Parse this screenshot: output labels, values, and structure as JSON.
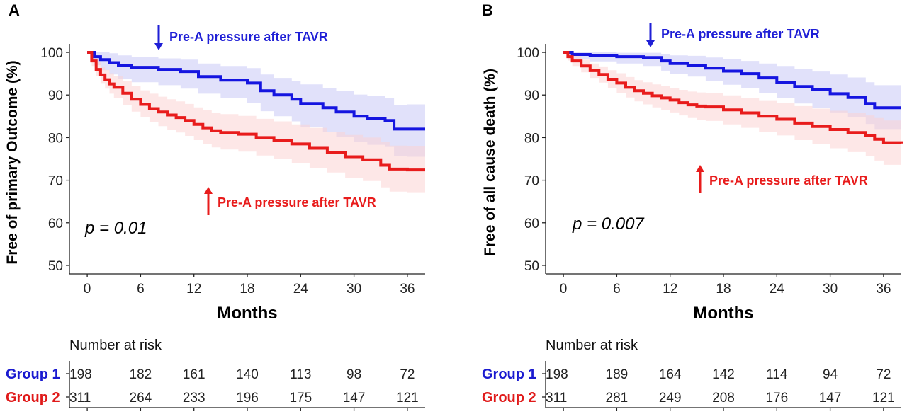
{
  "chart_data": [
    {
      "type": "line",
      "panel": "A",
      "title": "",
      "xlabel": "Months",
      "ylabel": "Free of primary Outcome (%)",
      "xlim": [
        -2,
        38
      ],
      "ylim": [
        48,
        102
      ],
      "xticks": [
        0,
        6,
        12,
        18,
        24,
        30,
        36
      ],
      "yticks": [
        50,
        60,
        70,
        80,
        90,
        100
      ],
      "grid": false,
      "legend": "none",
      "p_value": "p = 0.01",
      "annotations": [
        {
          "text": "Pre-A pressure after TAVR",
          "arrow": "down",
          "color": "#1f1fd6"
        },
        {
          "text": "Pre-A pressure after TAVR",
          "arrow": "up",
          "color": "#e81c1c"
        }
      ],
      "series": [
        {
          "color": "#1515e0",
          "band_color": "#c9c9f5",
          "x": [
            0,
            0.8,
            1.5,
            2.5,
            3.5,
            5,
            8,
            10.5,
            12.5,
            15,
            18,
            19.5,
            21,
            23,
            24,
            26.5,
            28,
            30,
            31.5,
            33.5,
            34.5,
            36,
            38
          ],
          "y": [
            100,
            99,
            98.3,
            97.6,
            97,
            96.5,
            96,
            95.5,
            94.3,
            93.5,
            92.8,
            91,
            90,
            89,
            88,
            87,
            86,
            85,
            84.5,
            84,
            82,
            82,
            82
          ],
          "lower": [
            100,
            97,
            95.8,
            94.8,
            93.8,
            93,
            92.3,
            91.5,
            90.3,
            89.3,
            88.2,
            86.2,
            85,
            83.8,
            82.5,
            81.3,
            80.2,
            79,
            78.3,
            77.8,
            75.6,
            75.5,
            75.5
          ],
          "upper": [
            100,
            100,
            100,
            99.8,
            99.3,
            98.9,
            98.6,
            98.3,
            97.4,
            96.8,
            96.3,
            94.8,
            94,
            93.2,
            92.5,
            91.7,
            90.9,
            90.1,
            89.7,
            89.3,
            87.6,
            87.8,
            88
          ]
        },
        {
          "color": "#e81c1c",
          "band_color": "#fcd3d3",
          "x": [
            0,
            0.5,
            1,
            1.5,
            2,
            2.5,
            3,
            4,
            5,
            6,
            7,
            8,
            9,
            10,
            11,
            12,
            13,
            14,
            15,
            17,
            19,
            21,
            23,
            25,
            27,
            29,
            31,
            33,
            34,
            36,
            38
          ],
          "y": [
            100,
            98,
            96,
            94.7,
            93.6,
            92.6,
            91.8,
            90.4,
            89,
            87.8,
            86.8,
            86,
            85.3,
            84.7,
            84,
            83.1,
            82.3,
            81.6,
            81.2,
            80.8,
            80,
            79.3,
            78.5,
            77.5,
            76.5,
            75.5,
            74.8,
            73.5,
            72.6,
            72.4,
            72.4
          ],
          "lower": [
            100,
            96.8,
            94.4,
            92.8,
            91.5,
            90.3,
            89.3,
            87.7,
            86.1,
            84.8,
            83.6,
            82.7,
            81.9,
            81.2,
            80.4,
            79.4,
            78.5,
            77.7,
            77.2,
            76.7,
            75.8,
            75,
            74,
            72.9,
            71.8,
            70.6,
            69.8,
            68.3,
            67.3,
            67,
            67
          ],
          "upper": [
            100,
            99.3,
            97.8,
            96.7,
            95.9,
            95.1,
            94.5,
            93.3,
            92.1,
            91.1,
            90.3,
            89.6,
            89,
            88.5,
            87.9,
            87.1,
            86.4,
            85.8,
            85.5,
            85.1,
            84.4,
            83.8,
            83.1,
            82.3,
            81.4,
            80.6,
            80,
            78.9,
            78.1,
            78,
            78
          ]
        }
      ],
      "risk_table": {
        "title": "Number at risk",
        "groups": [
          {
            "name": "Group 1",
            "color": "#1a1ad0",
            "counts": [
              198,
              182,
              161,
              140,
              113,
              98,
              72
            ]
          },
          {
            "name": "Group 2",
            "color": "#e01a1a",
            "counts": [
              311,
              264,
              233,
              196,
              175,
              147,
              121
            ]
          }
        ]
      }
    },
    {
      "type": "line",
      "panel": "B",
      "title": "",
      "xlabel": "Months",
      "ylabel": "Free of all cause death (%)",
      "xlim": [
        -2,
        38
      ],
      "ylim": [
        48,
        102
      ],
      "xticks": [
        0,
        6,
        12,
        18,
        24,
        30,
        36
      ],
      "yticks": [
        50,
        60,
        70,
        80,
        90,
        100
      ],
      "grid": false,
      "legend": "none",
      "p_value": "p = 0.007",
      "annotations": [
        {
          "text": "Pre-A pressure after TAVR",
          "arrow": "down",
          "color": "#1f1fd6"
        },
        {
          "text": "Pre-A pressure after TAVR",
          "arrow": "up",
          "color": "#e81c1c"
        }
      ],
      "series": [
        {
          "color": "#1515e0",
          "band_color": "#c9c9f5",
          "x": [
            0,
            1,
            3,
            6,
            9,
            11,
            12,
            14,
            16,
            18,
            20,
            22,
            24,
            26,
            28,
            30,
            32,
            34,
            35,
            36,
            38
          ],
          "y": [
            100,
            99.5,
            99.3,
            99,
            98.8,
            98,
            97.4,
            97,
            96.3,
            95.6,
            95,
            94,
            93,
            92,
            91.2,
            90.3,
            89.4,
            88,
            87,
            87,
            87
          ],
          "lower": [
            100,
            98.5,
            97.9,
            97.4,
            96.8,
            95.7,
            94.9,
            94.3,
            93.3,
            92.4,
            91.6,
            90.4,
            89.2,
            88,
            87,
            85.9,
            84.8,
            83.2,
            82,
            82,
            82
          ],
          "upper": [
            100,
            100,
            100,
            99.9,
            99.9,
            99.6,
            99.3,
            99.2,
            98.8,
            98.4,
            98,
            97.4,
            96.8,
            96.1,
            95.5,
            94.8,
            94.1,
            93,
            92.3,
            92.3,
            92.3
          ]
        },
        {
          "color": "#e81c1c",
          "band_color": "#fcd3d3",
          "x": [
            0,
            0.5,
            1,
            2,
            3,
            4,
            5,
            6,
            7,
            8,
            9,
            10,
            11,
            12,
            13,
            14,
            15,
            16,
            18,
            20,
            22,
            24,
            26,
            28,
            30,
            32,
            34,
            35,
            36,
            38
          ],
          "y": [
            100,
            99,
            98,
            96.8,
            95.7,
            94.8,
            93.7,
            92.8,
            91.8,
            91,
            90.4,
            89.8,
            89.3,
            88.8,
            88.2,
            87.7,
            87.4,
            87.2,
            86.5,
            85.8,
            85,
            84.3,
            83.4,
            82.6,
            81.9,
            81.2,
            80.4,
            79.6,
            78.8,
            78.6
          ],
          "lower": [
            100,
            98.1,
            96.8,
            95.3,
            94,
            92.9,
            91.6,
            90.5,
            89.4,
            88.5,
            87.8,
            87.1,
            86.5,
            85.9,
            85.2,
            84.6,
            84.2,
            83.9,
            83.1,
            82.3,
            81.4,
            80.5,
            79.4,
            78.4,
            77.5,
            76.6,
            75.6,
            74.6,
            73.6,
            73.3
          ],
          "upper": [
            100,
            99.8,
            99.2,
            98.3,
            97.4,
            96.7,
            95.8,
            95.1,
            94.2,
            93.5,
            93,
            92.5,
            92.1,
            91.7,
            91.2,
            90.8,
            90.6,
            90.5,
            89.9,
            89.3,
            88.6,
            88.1,
            87.4,
            86.8,
            86.3,
            85.8,
            85.2,
            84.6,
            84,
            83.9
          ]
        }
      ],
      "risk_table": {
        "title": "Number at risk",
        "groups": [
          {
            "name": "Group 1",
            "color": "#1a1ad0",
            "counts": [
              198,
              189,
              164,
              142,
              114,
              94,
              72
            ]
          },
          {
            "name": "Group 2",
            "color": "#e01a1a",
            "counts": [
              311,
              281,
              249,
              208,
              176,
              147,
              121
            ]
          }
        ]
      }
    }
  ]
}
